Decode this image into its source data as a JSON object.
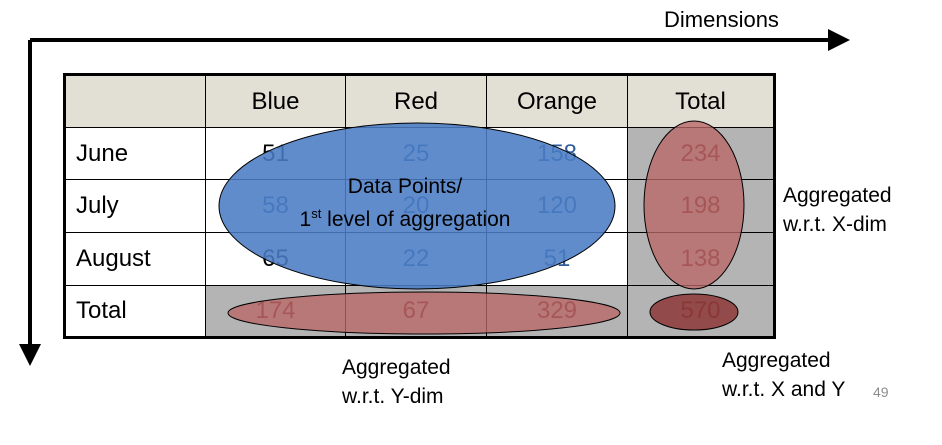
{
  "dimensions_label": "Dimensions",
  "table": {
    "corner": "",
    "columns": [
      "Blue",
      "Red",
      "Orange",
      "Total"
    ],
    "rows": [
      {
        "label": "June",
        "values": [
          "51",
          "25",
          "158",
          "234"
        ]
      },
      {
        "label": "July",
        "values": [
          "58",
          "20",
          "120",
          "198"
        ]
      },
      {
        "label": "August",
        "values": [
          "65",
          "22",
          "51",
          "138"
        ]
      },
      {
        "label": "Total",
        "values": [
          "174",
          "67",
          "329",
          "570"
        ]
      }
    ]
  },
  "ellipses": {
    "data_points_line1": "Data Points/",
    "data_points_ordinal": "1",
    "data_points_sup": "st",
    "data_points_line2": " level of aggregation"
  },
  "annotations": {
    "x_dim_line1": "Aggregated",
    "x_dim_line2": "w.r.t. X-dim",
    "y_dim_line1": "Aggregated",
    "y_dim_line2": "w.r.t. Y-dim",
    "xy_line1": "Aggregated",
    "xy_line2": "w.r.t. X and Y"
  },
  "page_number": "49",
  "colors": {
    "header_bg": "#e2dfd5",
    "gray_cells": "#b4b4b4",
    "blue_ellipse": "#4a7cc4",
    "red_ellipse": "#b96666",
    "dark_red_ellipse": "#8e3b3b"
  }
}
